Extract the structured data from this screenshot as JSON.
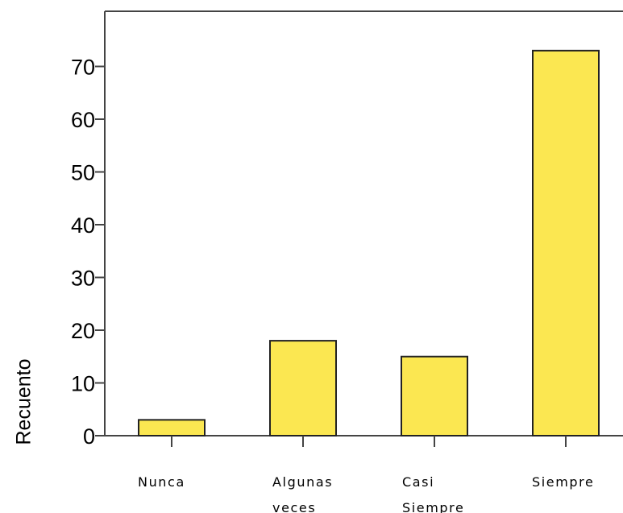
{
  "chart_data": {
    "type": "bar",
    "categories": [
      [
        "Nunca"
      ],
      [
        "Algunas",
        "veces"
      ],
      [
        "Casi",
        "Siempre"
      ],
      [
        "Siempre"
      ]
    ],
    "values": [
      3,
      18,
      15,
      73
    ],
    "xlabel": "",
    "ylabel": "Recuento",
    "ylim": [
      0,
      80
    ],
    "yticks": [
      "0",
      "10",
      "20",
      "30",
      "40",
      "50",
      "60",
      "70"
    ],
    "grid": false,
    "bar_color": "#fbe751",
    "bar_edge_color": "#222222"
  }
}
